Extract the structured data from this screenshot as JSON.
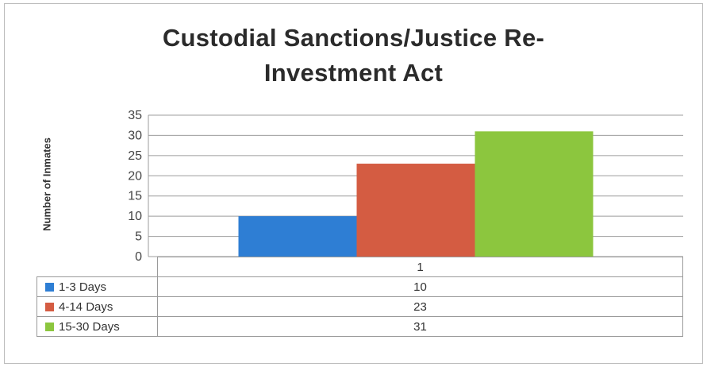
{
  "chart_data": {
    "type": "bar",
    "title": "Custodial Sanctions/Justice Re-Investment Act",
    "title_lines": [
      "Custodial Sanctions/Justice Re-",
      "Investment Act"
    ],
    "ylabel": "Number of Inmates",
    "xlabel": "",
    "ylim": [
      0,
      35
    ],
    "yticks": [
      0,
      5,
      10,
      15,
      20,
      25,
      30,
      35
    ],
    "categories": [
      "1"
    ],
    "series": [
      {
        "name": "1-3 Days",
        "values": [
          10
        ],
        "color": "#2e7ed4"
      },
      {
        "name": "4-14 Days",
        "values": [
          23
        ],
        "color": "#d45c42"
      },
      {
        "name": "15-30 Days",
        "values": [
          31
        ],
        "color": "#8cc63e"
      }
    ],
    "grid": true,
    "legend": "data table"
  }
}
